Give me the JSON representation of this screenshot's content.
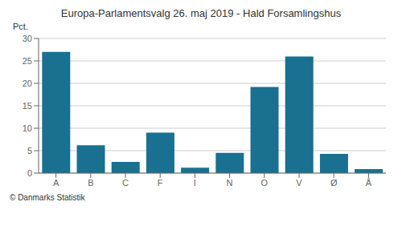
{
  "chart_data": {
    "type": "bar",
    "title": "Europa-Parlamentsvalg 26. maj 2019 - Hald Forsamlingshus",
    "categories": [
      "A",
      "B",
      "C",
      "F",
      "I",
      "N",
      "O",
      "V",
      "Ø",
      "Å"
    ],
    "values": [
      27.0,
      6.2,
      2.5,
      9.0,
      1.2,
      4.5,
      19.2,
      26.0,
      4.3,
      0.9
    ],
    "color": "#1a7090",
    "ylabel": "Pct.",
    "ylim": [
      0,
      30
    ],
    "yticks": [
      0,
      5,
      10,
      15,
      20,
      25,
      30
    ],
    "grid": true,
    "annotations": [
      "© Danmarks Statistik"
    ]
  }
}
